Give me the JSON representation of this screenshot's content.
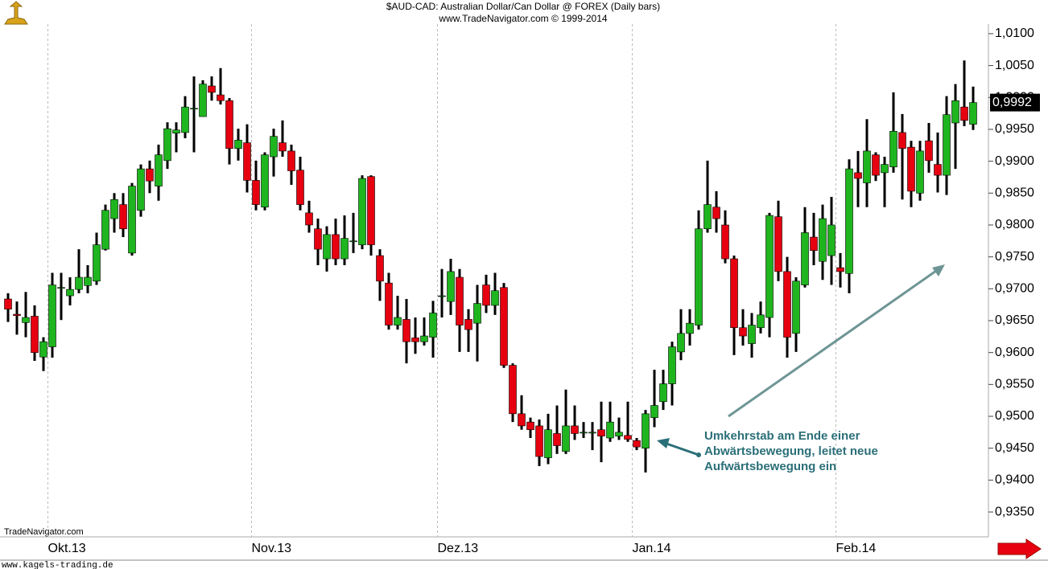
{
  "chart_data": {
    "type": "candlestick",
    "title": "$AUD-CAD:  Australian Dollar/Can Dollar @ FOREX  (Daily bars)",
    "subtitle": "www.TradeNavigator.com © 1999-2014",
    "watermark": "TradeNavigator.com",
    "footer": "www.kagels-trading.de",
    "annotation": [
      "Umkehrstab am Ende einer",
      "Abwärtsbewegung, leitet neue",
      "Aufwärtsbewegung ein"
    ],
    "up_color": "#1fb51f",
    "down_color": "#e60010",
    "categories": [
      null,
      null,
      null,
      null,
      null,
      "Okt.13",
      null,
      null,
      null,
      null,
      null,
      null,
      null,
      null,
      null,
      null,
      null,
      null,
      null,
      null,
      null,
      null,
      null,
      null,
      null,
      null,
      null,
      null,
      "Nov.13",
      null,
      null,
      null,
      null,
      null,
      null,
      null,
      null,
      null,
      null,
      null,
      null,
      null,
      null,
      null,
      null,
      null,
      null,
      null,
      null,
      "Dez.13",
      null,
      null,
      null,
      null,
      null,
      null,
      null,
      null,
      null,
      null,
      null,
      null,
      null,
      null,
      null,
      null,
      null,
      null,
      null,
      null,
      null,
      "Jan.14",
      null,
      null,
      null,
      null,
      null,
      null,
      null,
      null,
      null,
      null,
      null,
      null,
      null,
      null,
      null,
      null,
      null,
      null,
      null,
      null,
      null,
      null,
      "Feb.14",
      null,
      null,
      null,
      null,
      null,
      null,
      null,
      null,
      null,
      null,
      null,
      null,
      null,
      null,
      null
    ],
    "open": [
      0.9684,
      0.966,
      0.9647,
      0.9657,
      0.9593,
      0.9609,
      0.9702,
      0.9689,
      0.9699,
      0.9705,
      0.9712,
      0.9762,
      0.981,
      0.9832,
      0.9756,
      0.9823,
      0.9888,
      0.9861,
      0.9901,
      0.9944,
      0.9945,
      0.9983,
      0.997,
      1.0018,
      1.0004,
      0.9995,
      0.992,
      0.9929,
      0.987,
      0.9828,
      0.9907,
      0.9929,
      0.9916,
      0.9886,
      0.9819,
      0.9794,
      0.9747,
      0.9785,
      0.9747,
      0.9775,
      0.9769,
      0.9876,
      0.9752,
      0.9709,
      0.9643,
      0.9652,
      0.9623,
      0.9617,
      0.9624,
      0.9689,
      0.968,
      0.9718,
      0.9652,
      0.9646,
      0.9706,
      0.9674,
      0.9702,
      0.958,
      0.9504,
      0.9491,
      0.9485,
      0.9435,
      0.9473,
      0.9445,
      0.9485,
      0.9475,
      0.9475,
      0.9479,
      0.9466,
      0.9469,
      0.947,
      0.9462,
      0.945,
      0.9498,
      0.9523,
      0.9551,
      0.9601,
      0.963,
      0.9643,
      0.9794,
      0.9828,
      0.98,
      0.9747,
      0.9639,
      0.9614,
      0.9639,
      0.9655,
      0.9813,
      0.9727,
      0.963,
      0.9706,
      0.9781,
      0.9743,
      0.9752,
      0.9733,
      0.9724,
      0.9882,
      0.9866,
      0.991,
      0.9882,
      0.9891,
      0.9945,
      0.9922,
      0.985,
      0.9932,
      0.9895,
      0.9878,
      0.996,
      0.9985,
      0.9958
    ],
    "high": [
      0.9693,
      0.968,
      0.9695,
      0.9674,
      0.9624,
      0.9725,
      0.9725,
      0.9718,
      0.9762,
      0.9737,
      0.9788,
      0.9832,
      0.985,
      0.985,
      0.9866,
      0.9895,
      0.9901,
      0.9926,
      0.9961,
      0.9961,
      1.0002,
      1.0033,
      1.0027,
      1.0033,
      1.0046,
      0.9999,
      0.9951,
      0.9958,
      0.9901,
      0.9914,
      0.9951,
      0.9964,
      0.9926,
      0.9907,
      0.9838,
      0.981,
      0.9798,
      0.981,
      0.9815,
      0.9819,
      0.9878,
      0.9878,
      0.9762,
      0.9725,
      0.9689,
      0.9684,
      0.9655,
      0.9655,
      0.9681,
      0.9731,
      0.9747,
      0.9731,
      0.9668,
      0.9706,
      0.9722,
      0.9725,
      0.9709,
      0.9583,
      0.9533,
      0.9498,
      0.9495,
      0.9504,
      0.9517,
      0.9542,
      0.9517,
      0.9491,
      0.9491,
      0.9523,
      0.9523,
      0.9498,
      0.9523,
      0.9466,
      0.951,
      0.9573,
      0.9573,
      0.9617,
      0.9668,
      0.9668,
      0.9823,
      0.9901,
      0.9853,
      0.9823,
      0.9752,
      0.9668,
      0.9662,
      0.968,
      0.9819,
      0.9838,
      0.975,
      0.9718,
      0.9828,
      0.9819,
      0.9832,
      0.9844,
      0.9756,
      0.9903,
      0.9916,
      0.9966,
      0.9914,
      0.9907,
      1.0008,
      0.9974,
      0.9932,
      0.9932,
      0.996,
      0.9945,
      1.0002,
      1.0021,
      1.0058,
      1.0017
    ],
    "low": [
      0.9648,
      0.9628,
      0.9624,
      0.9587,
      0.9571,
      0.9592,
      0.9651,
      0.9674,
      0.9693,
      0.9693,
      0.9706,
      0.976,
      0.9788,
      0.9781,
      0.9752,
      0.9813,
      0.985,
      0.9838,
      0.9888,
      0.9914,
      0.9936,
      0.9914,
      0.997,
      0.9995,
      0.9989,
      0.9895,
      0.9901,
      0.9851,
      0.9823,
      0.9823,
      0.9876,
      0.9907,
      0.9863,
      0.9823,
      0.9788,
      0.9737,
      0.9727,
      0.9737,
      0.9737,
      0.9756,
      0.9762,
      0.9752,
      0.9681,
      0.9636,
      0.9636,
      0.9583,
      0.9598,
      0.9611,
      0.9592,
      0.9655,
      0.9659,
      0.9601,
      0.9601,
      0.9586,
      0.9662,
      0.9659,
      0.9576,
      0.9491,
      0.9479,
      0.9466,
      0.9422,
      0.9425,
      0.9441,
      0.9441,
      0.9463,
      0.9466,
      0.9447,
      0.9428,
      0.946,
      0.9463,
      0.946,
      0.9447,
      0.9412,
      0.9483,
      0.951,
      0.9517,
      0.9588,
      0.9611,
      0.9636,
      0.9788,
      0.9788,
      0.974,
      0.9596,
      0.9611,
      0.9592,
      0.963,
      0.9624,
      0.9712,
      0.9592,
      0.9601,
      0.9702,
      0.9737,
      0.9714,
      0.9706,
      0.9702,
      0.9693,
      0.9828,
      0.9828,
      0.9869,
      0.9828,
      0.9882,
      0.984,
      0.9828,
      0.9838,
      0.9882,
      0.9851,
      0.9847,
      0.9888,
      0.9955,
      0.9949
    ],
    "close": [
      0.9668,
      0.9658,
      0.9655,
      0.96,
      0.9617,
      0.9706,
      0.9702,
      0.9699,
      0.9718,
      0.9718,
      0.9769,
      0.9823,
      0.984,
      0.9794,
      0.9861,
      0.9888,
      0.9869,
      0.991,
      0.9951,
      0.9949,
      0.9985,
      0.9983,
      1.0021,
      1.0008,
      0.9995,
      0.992,
      0.9933,
      0.987,
      0.9832,
      0.991,
      0.9939,
      0.9916,
      0.9885,
      0.9832,
      0.98,
      0.9762,
      0.9785,
      0.9747,
      0.9779,
      0.9775,
      0.9873,
      0.9769,
      0.9712,
      0.9643,
      0.9655,
      0.9617,
      0.9617,
      0.9626,
      0.9662,
      0.9689,
      0.9727,
      0.9643,
      0.9636,
      0.9677,
      0.9674,
      0.9697,
      0.958,
      0.9504,
      0.9485,
      0.9479,
      0.9437,
      0.9479,
      0.9454,
      0.9485,
      0.9473,
      0.9475,
      0.9475,
      0.9469,
      0.9491,
      0.9475,
      0.9464,
      0.9452,
      0.9504,
      0.9517,
      0.9551,
      0.9609,
      0.963,
      0.9646,
      0.9794,
      0.9832,
      0.981,
      0.9747,
      0.9639,
      0.9626,
      0.9643,
      0.9659,
      0.9815,
      0.9727,
      0.9624,
      0.9712,
      0.9788,
      0.976,
      0.981,
      0.98,
      0.9727,
      0.9888,
      0.9873,
      0.9916,
      0.9878,
      0.9895,
      0.9947,
      0.992,
      0.9853,
      0.9916,
      0.9901,
      0.9878,
      0.9973,
      0.9995,
      0.9964,
      0.9992
    ],
    "last_price": {
      "value": 0.9992,
      "label": "0,9992"
    },
    "ylim": [
      0.9311,
      1.0115
    ],
    "yticks": [
      {
        "value": 0.935,
        "label": "0,9350"
      },
      {
        "value": 0.94,
        "label": "0,9400"
      },
      {
        "value": 0.945,
        "label": "0,9450"
      },
      {
        "value": 0.95,
        "label": "0,9500"
      },
      {
        "value": 0.955,
        "label": "0,9550"
      },
      {
        "value": 0.96,
        "label": "0,9600"
      },
      {
        "value": 0.965,
        "label": "0,9650"
      },
      {
        "value": 0.97,
        "label": "0,9700"
      },
      {
        "value": 0.975,
        "label": "0,9750"
      },
      {
        "value": 0.98,
        "label": "0,9800"
      },
      {
        "value": 0.985,
        "label": "0,9850"
      },
      {
        "value": 0.99,
        "label": "0,9900"
      },
      {
        "value": 0.995,
        "label": "0,9950"
      },
      {
        "value": 1.0,
        "label": "1,0000"
      },
      {
        "value": 1.005,
        "label": "1,0050"
      },
      {
        "value": 1.01,
        "label": "1,0100"
      }
    ]
  }
}
